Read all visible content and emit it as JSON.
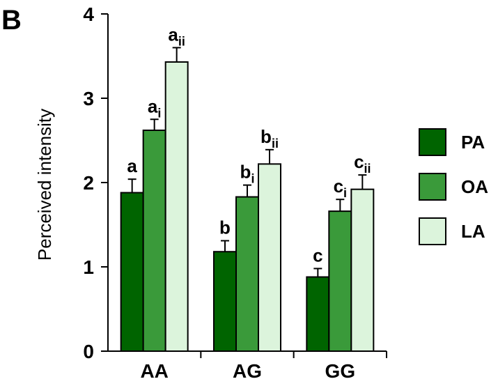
{
  "chart_data": {
    "type": "bar",
    "panel_label": "B",
    "ylabel": "Perceived intensity",
    "xlabel": "",
    "ylim": [
      0,
      4
    ],
    "yticks": [
      0,
      1,
      2,
      3,
      4
    ],
    "categories": [
      "AA",
      "AG",
      "GG"
    ],
    "series": [
      {
        "name": "PA",
        "color": "#006400",
        "values": [
          1.88,
          1.18,
          0.88
        ],
        "errors": [
          0.16,
          0.13,
          0.1
        ],
        "labels": [
          {
            "main": "a",
            "sub": ""
          },
          {
            "main": "b",
            "sub": ""
          },
          {
            "main": "c",
            "sub": ""
          }
        ]
      },
      {
        "name": "OA",
        "color": "#3a9a3a",
        "values": [
          2.62,
          1.83,
          1.66
        ],
        "errors": [
          0.13,
          0.14,
          0.14
        ],
        "labels": [
          {
            "main": "a",
            "sub": "i"
          },
          {
            "main": "b",
            "sub": "i"
          },
          {
            "main": "c",
            "sub": "i"
          }
        ]
      },
      {
        "name": "LA",
        "color": "#dcf4dc",
        "values": [
          3.43,
          2.22,
          1.92
        ],
        "errors": [
          0.17,
          0.17,
          0.17
        ],
        "labels": [
          {
            "main": "a",
            "sub": "ii"
          },
          {
            "main": "b",
            "sub": "ii"
          },
          {
            "main": "c",
            "sub": "ii"
          }
        ]
      }
    ],
    "legend": {
      "position": "right"
    },
    "grid": false
  }
}
